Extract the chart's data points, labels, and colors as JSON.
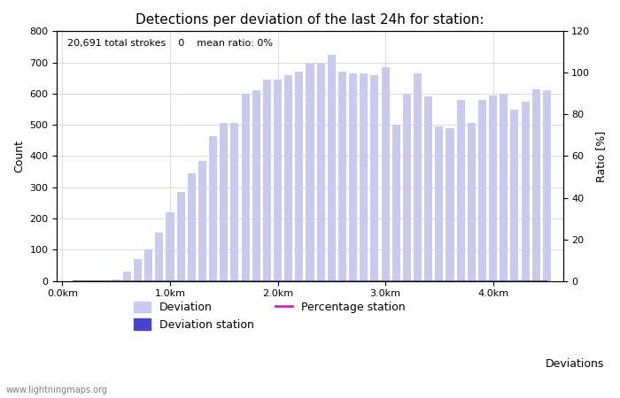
{
  "title": "Detections per deviation of the last 24h for station:",
  "annotation": "20,691 total strokes    0    mean ratio: 0%",
  "xlabel": "Deviations",
  "ylabel_left": "Count",
  "ylabel_right": "Ratio [%]",
  "watermark": "www.lightningmaps.org",
  "ylim_left": [
    0,
    800
  ],
  "ylim_right": [
    0,
    120
  ],
  "yticks_left": [
    0,
    100,
    200,
    300,
    400,
    500,
    600,
    700,
    800
  ],
  "yticks_right": [
    0,
    20,
    40,
    60,
    80,
    100,
    120
  ],
  "bar_color": "#c8caf0",
  "bar_station_color": "#4444cc",
  "bar_width": 0.075,
  "xtick_labels": [
    "0.0km",
    "1.0km",
    "2.0km",
    "3.0km",
    "4.0km"
  ],
  "xtick_positions": [
    0.0,
    1.0,
    2.0,
    3.0,
    4.0
  ],
  "deviations": [
    0.1,
    0.2,
    0.3,
    0.4,
    0.5,
    0.6,
    0.7,
    0.8,
    0.9,
    1.0,
    1.1,
    1.2,
    1.3,
    1.4,
    1.5,
    1.6,
    1.7,
    1.8,
    1.9,
    2.0,
    2.1,
    2.2,
    2.3,
    2.4,
    2.5,
    2.6,
    2.7,
    2.8,
    2.9,
    3.0,
    3.1,
    3.2,
    3.3,
    3.4,
    3.5,
    3.6,
    3.7,
    3.8,
    3.9,
    4.0,
    4.1,
    4.2,
    4.3,
    4.4,
    4.5
  ],
  "counts": [
    0,
    0,
    0,
    0,
    5,
    30,
    70,
    100,
    155,
    220,
    285,
    345,
    385,
    465,
    505,
    505,
    600,
    610,
    645,
    645,
    660,
    670,
    695,
    700,
    725,
    670,
    665,
    665,
    660,
    685,
    500,
    600,
    665,
    590,
    495,
    490,
    580,
    505,
    580,
    595,
    600,
    550,
    575,
    615,
    610
  ],
  "station_counts": [
    0,
    0,
    0,
    0,
    0,
    0,
    0,
    0,
    0,
    0,
    0,
    0,
    0,
    0,
    0,
    0,
    0,
    0,
    0,
    0,
    0,
    0,
    0,
    0,
    0,
    0,
    0,
    0,
    0,
    0,
    0,
    0,
    0,
    0,
    0,
    0,
    0,
    0,
    0,
    0,
    0,
    0,
    0,
    0,
    0
  ],
  "percentage_station": [
    0,
    0,
    0,
    0,
    0,
    0,
    0,
    0,
    0,
    0,
    0,
    0,
    0,
    0,
    0,
    0,
    0,
    0,
    0,
    0,
    0,
    0,
    0,
    0,
    0,
    0,
    0,
    0,
    0,
    0,
    0,
    0,
    0,
    0,
    0,
    0,
    0,
    0,
    0,
    0,
    0,
    0,
    0,
    0,
    0
  ],
  "legend_deviation_label": "Deviation",
  "legend_station_label": "Deviation station",
  "legend_percentage_label": "Percentage station",
  "percentage_line_color": "#ff00ff",
  "background_color": "#ffffff",
  "grid_color": "#cccccc",
  "title_fontsize": 11,
  "label_fontsize": 9,
  "tick_fontsize": 8,
  "annotation_fontsize": 8
}
